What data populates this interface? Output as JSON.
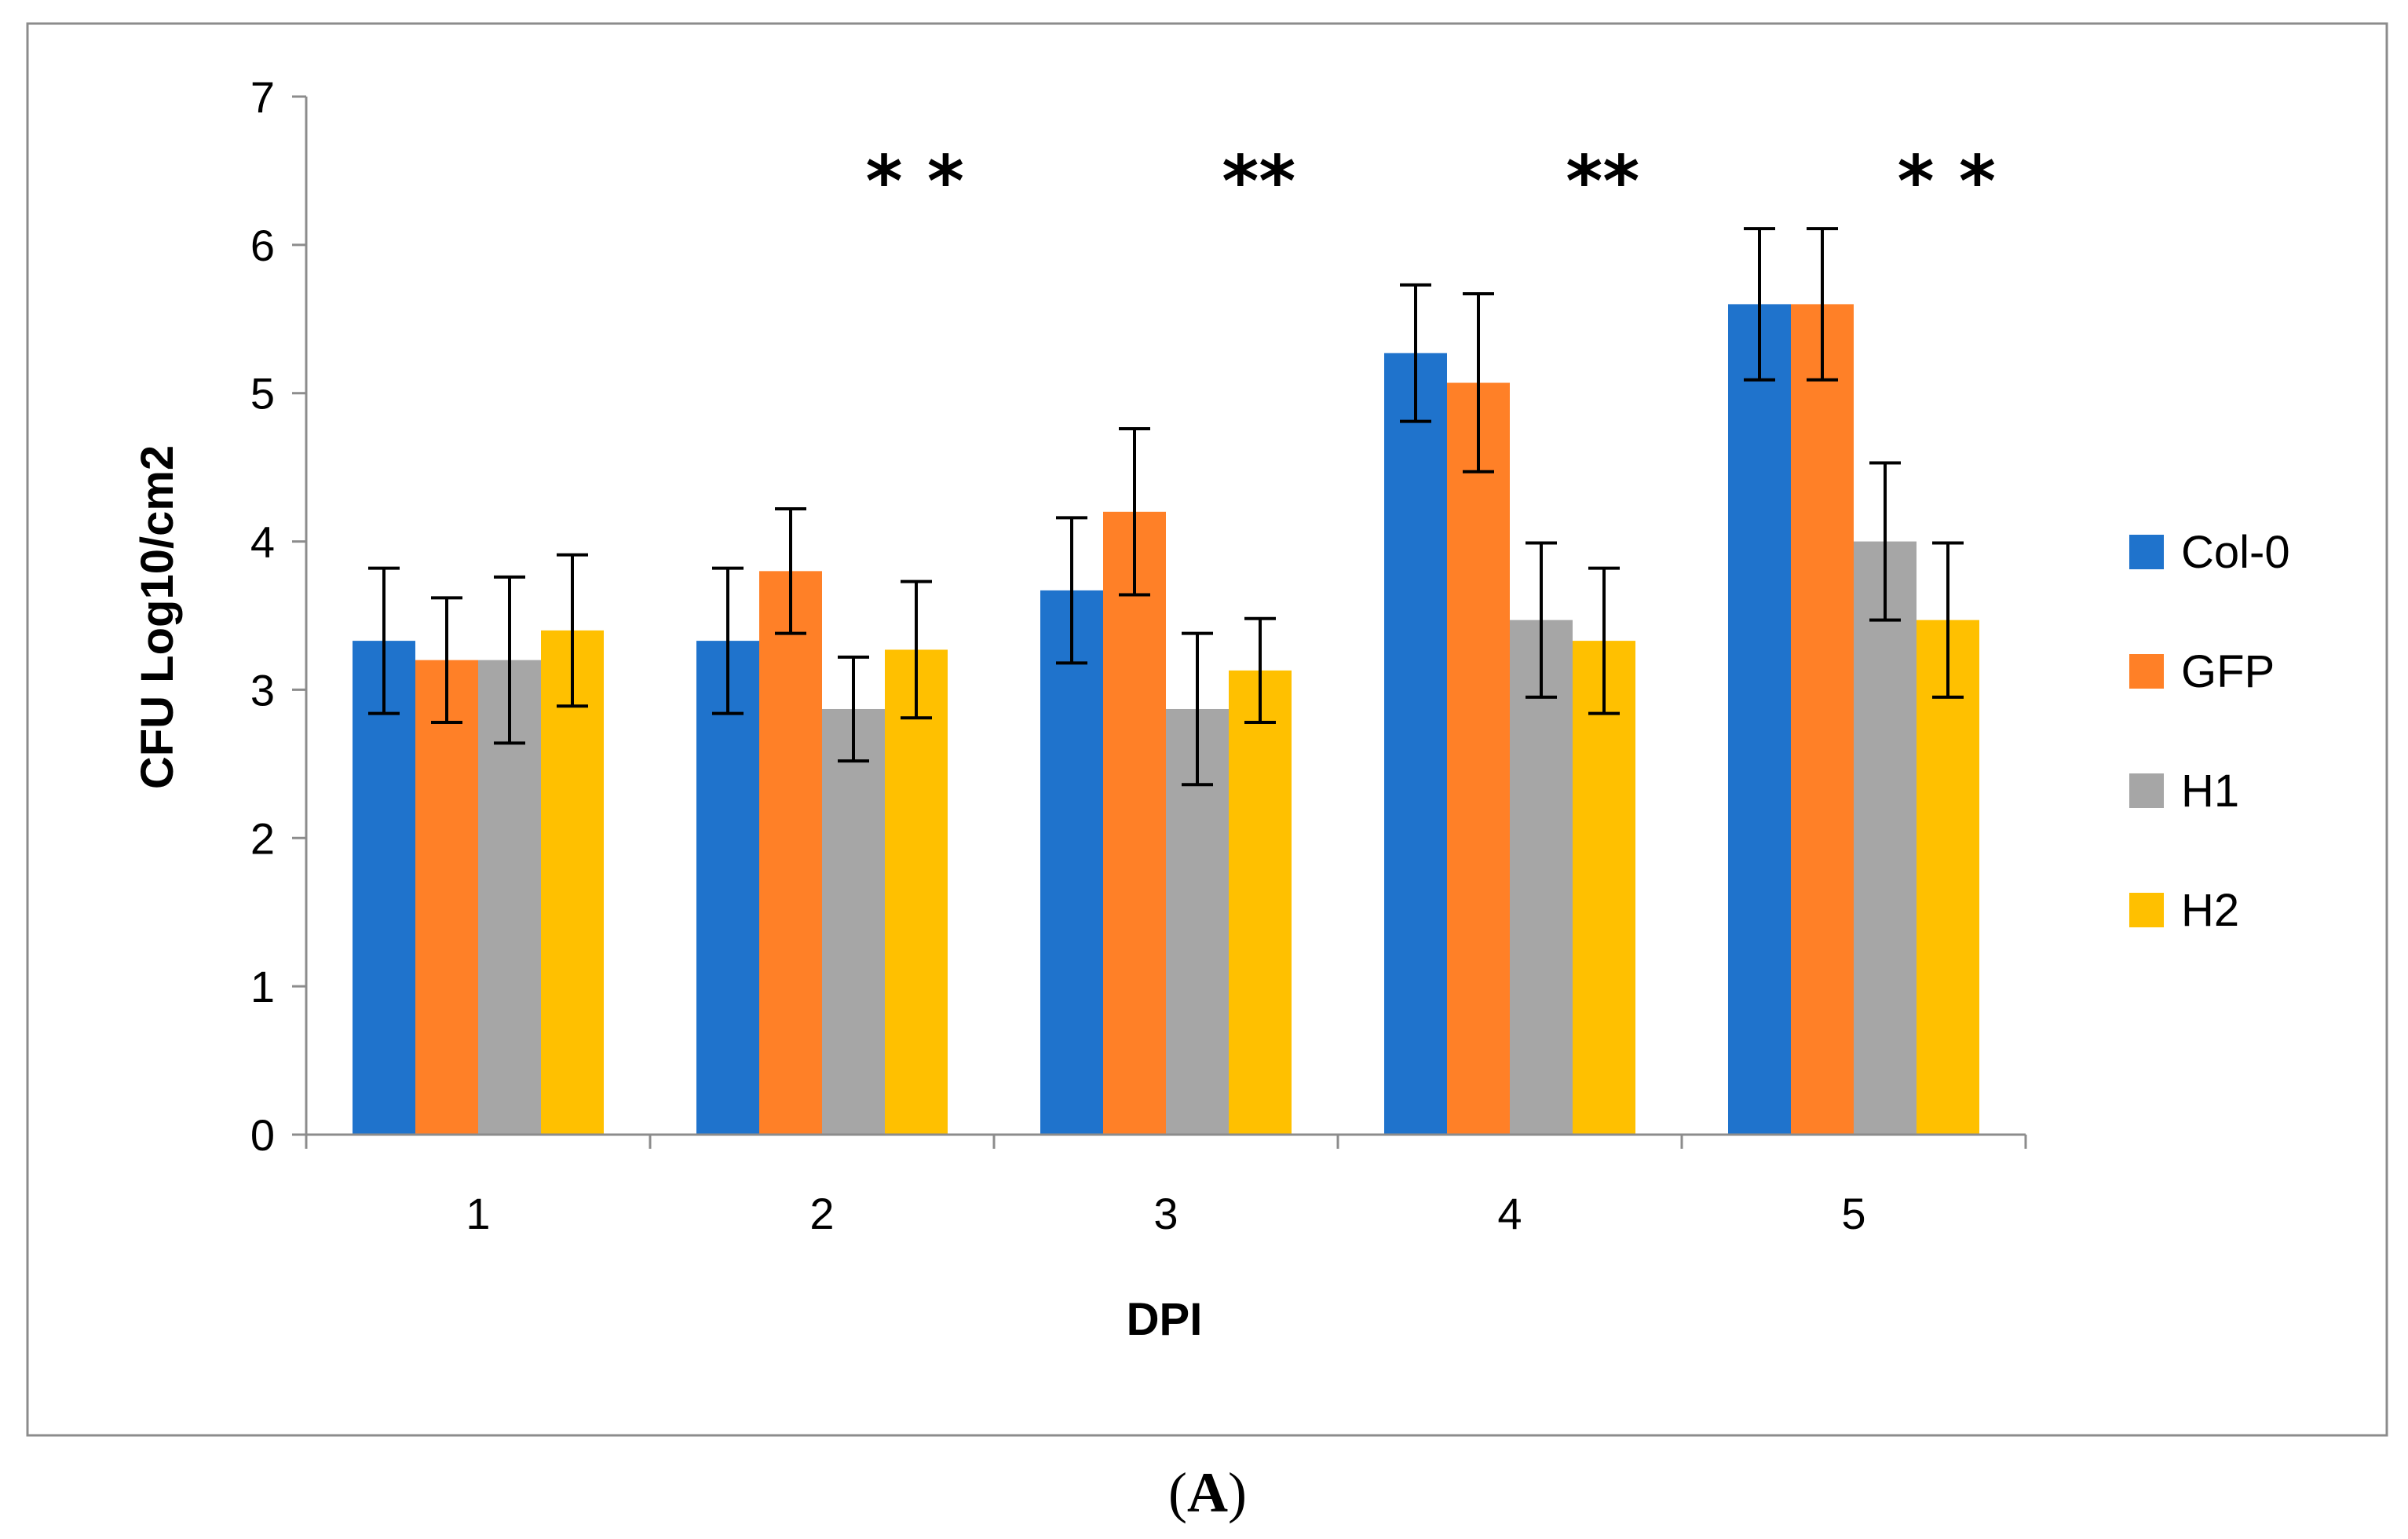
{
  "chart_data": {
    "type": "bar",
    "xlabel": "DPI",
    "ylabel": "CFU Log10/cm2",
    "ylim": [
      0,
      7
    ],
    "yticks": [
      0,
      1,
      2,
      3,
      4,
      5,
      6,
      7
    ],
    "grid": false,
    "legend_position": "right",
    "categories": [
      "1",
      "2",
      "3",
      "4",
      "5"
    ],
    "series": [
      {
        "name": "Col-0",
        "color": "#1F73CC",
        "values": [
          3.33,
          3.33,
          3.67,
          5.27,
          5.6
        ],
        "errors": [
          0.49,
          0.49,
          0.49,
          0.46,
          0.51
        ]
      },
      {
        "name": "GFP",
        "color": "#FF8027",
        "values": [
          3.2,
          3.8,
          4.2,
          5.07,
          5.6
        ],
        "errors": [
          0.42,
          0.42,
          0.56,
          0.6,
          0.51
        ]
      },
      {
        "name": "H1",
        "color": "#A6A6A6",
        "values": [
          3.2,
          2.87,
          2.87,
          3.47,
          4.0
        ],
        "errors": [
          0.56,
          0.35,
          0.51,
          0.52,
          0.53
        ]
      },
      {
        "name": "H2",
        "color": "#FFC000",
        "values": [
          3.4,
          3.27,
          3.13,
          3.33,
          3.47
        ],
        "errors": [
          0.51,
          0.46,
          0.35,
          0.49,
          0.52
        ]
      }
    ],
    "annotations": [
      "* *",
      "**",
      "**",
      "* *"
    ],
    "annotation_categories": [
      "2",
      "3",
      "4",
      "5"
    ]
  },
  "panel_label": {
    "open": "(",
    "letter": "A",
    "close": ")"
  }
}
